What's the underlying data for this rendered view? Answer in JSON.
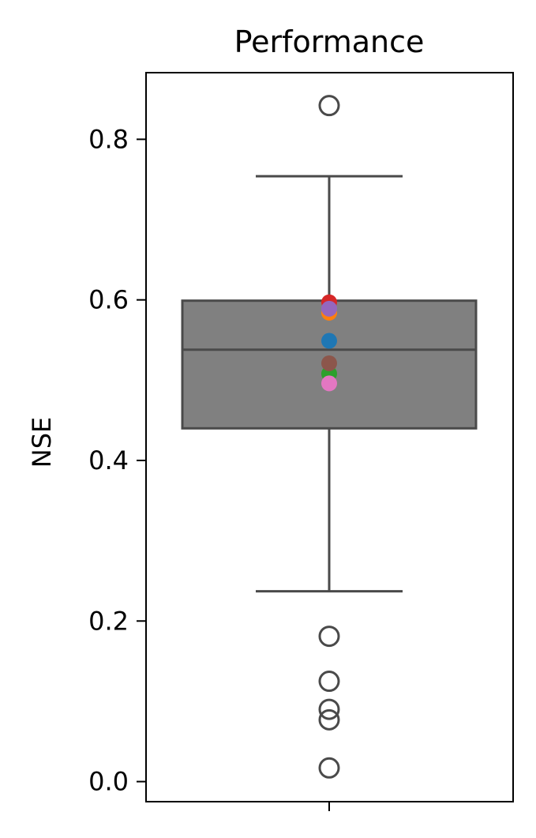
{
  "chart_data": {
    "type": "box",
    "title": "Performance",
    "ylabel": "NSE",
    "xlabel": "",
    "ylim": [
      -0.025,
      0.883
    ],
    "yticks": [
      0.0,
      0.2,
      0.4,
      0.6,
      0.8
    ],
    "ytick_labels": [
      "0.0",
      "0.2",
      "0.4",
      "0.6",
      "0.8"
    ],
    "grid": false,
    "box": {
      "q1": 0.44,
      "median": 0.538,
      "q3": 0.599,
      "whisker_low": 0.237,
      "whisker_high": 0.754,
      "color": "#808080",
      "edge_color": "#4a4a4a"
    },
    "outliers": [
      0.842,
      0.181,
      0.125,
      0.09,
      0.077,
      0.017
    ],
    "highlight_points": [
      {
        "value": 0.597,
        "color": "#d62728"
      },
      {
        "value": 0.584,
        "color": "#ff7f0e"
      },
      {
        "value": 0.589,
        "color": "#9467bd"
      },
      {
        "value": 0.549,
        "color": "#1f77b4"
      },
      {
        "value": 0.508,
        "color": "#2ca02c"
      },
      {
        "value": 0.521,
        "color": "#8c564b"
      },
      {
        "value": 0.496,
        "color": "#e377c2"
      }
    ]
  }
}
